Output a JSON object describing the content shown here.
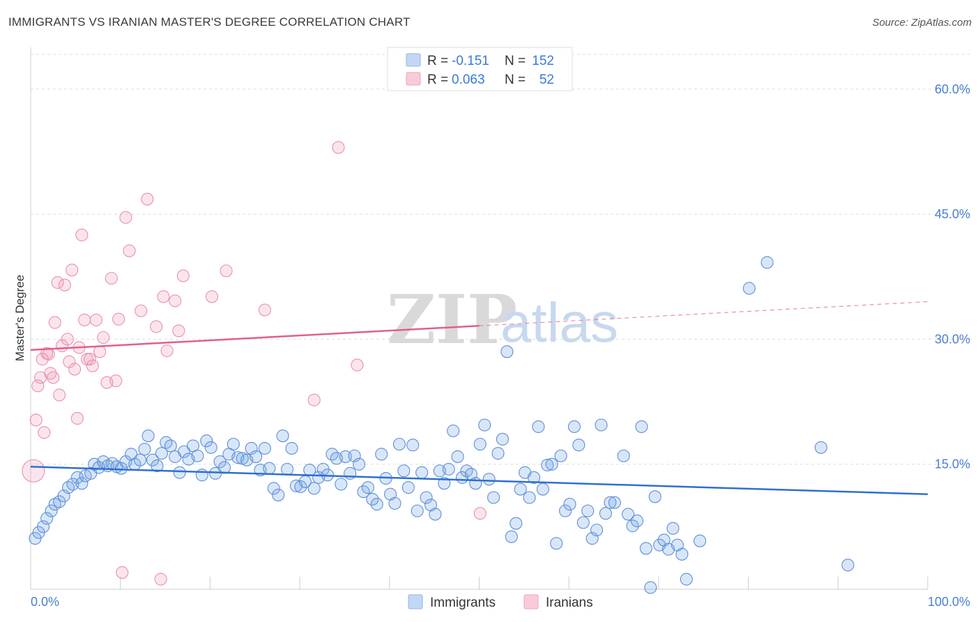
{
  "header": {
    "title": "IMMIGRANTS VS IRANIAN MASTER'S DEGREE CORRELATION CHART",
    "source": "Source: ZipAtlas.com"
  },
  "watermark": {
    "zip": "ZIP",
    "atlas": "atlas"
  },
  "legend": {
    "rows": [
      {
        "r_label": "R =",
        "r_value": "-0.151",
        "n_label": "N =",
        "n_value": "152",
        "color": "#8fb4e8"
      },
      {
        "r_label": "R =",
        "r_value": "0.063",
        "n_label": "N =",
        "n_value": "52",
        "color": "#f0a0bc"
      }
    ]
  },
  "colors": {
    "immigrants_fill": "rgba(120,165,230,0.28)",
    "immigrants_stroke": "#5b8fd9",
    "immigrants_line": "#2f6fcf",
    "iranians_fill": "rgba(240,150,180,0.25)",
    "iranians_stroke": "#ea8fae",
    "iranians_line": "#e0608a",
    "grid": "#dddddd",
    "tick_label": "#4a7fd0"
  },
  "chart_data": {
    "type": "scatter",
    "title": "IMMIGRANTS VS IRANIAN MASTER'S DEGREE CORRELATION CHART",
    "xlabel": "",
    "ylabel": "Master's Degree",
    "xlim": [
      0,
      100
    ],
    "ylim": [
      0,
      65
    ],
    "x_tick_labels": [
      "0.0%",
      "100.0%"
    ],
    "y_ticks": [
      15,
      30,
      45,
      60
    ],
    "y_tick_labels": [
      "15.0%",
      "30.0%",
      "45.0%",
      "60.0%"
    ],
    "grid": true,
    "legend_position": "top-center",
    "series": [
      {
        "name": "Immigrants",
        "r": -0.151,
        "n": 152,
        "trend": {
          "x": [
            0,
            100
          ],
          "y": [
            14.7,
            11.4
          ]
        },
        "points": [
          [
            0.5,
            6.1
          ],
          [
            0.9,
            6.8
          ],
          [
            1.4,
            7.5
          ],
          [
            1.8,
            8.5
          ],
          [
            2.3,
            9.4
          ],
          [
            2.7,
            10.2
          ],
          [
            3.2,
            10.5
          ],
          [
            3.7,
            11.2
          ],
          [
            4.2,
            12.2
          ],
          [
            4.7,
            12.6
          ],
          [
            5.2,
            13.4
          ],
          [
            5.7,
            12.7
          ],
          [
            6.1,
            13.6
          ],
          [
            6.7,
            13.9
          ],
          [
            7.1,
            15.0
          ],
          [
            7.6,
            14.6
          ],
          [
            8.1,
            15.3
          ],
          [
            8.6,
            14.8
          ],
          [
            9.1,
            15.1
          ],
          [
            9.6,
            14.7
          ],
          [
            10.1,
            14.5
          ],
          [
            10.6,
            15.3
          ],
          [
            11.2,
            16.2
          ],
          [
            11.6,
            15.0
          ],
          [
            12.2,
            15.5
          ],
          [
            12.7,
            16.8
          ],
          [
            13.1,
            18.4
          ],
          [
            13.6,
            15.5
          ],
          [
            14.1,
            14.8
          ],
          [
            14.6,
            16.3
          ],
          [
            15.1,
            17.6
          ],
          [
            15.6,
            17.2
          ],
          [
            16.1,
            15.9
          ],
          [
            16.6,
            14.0
          ],
          [
            17.1,
            16.5
          ],
          [
            17.6,
            15.6
          ],
          [
            18.1,
            17.2
          ],
          [
            18.6,
            16.0
          ],
          [
            19.1,
            13.7
          ],
          [
            19.6,
            17.8
          ],
          [
            20.1,
            17.0
          ],
          [
            20.6,
            13.9
          ],
          [
            21.1,
            15.3
          ],
          [
            21.6,
            14.6
          ],
          [
            22.1,
            16.2
          ],
          [
            22.6,
            17.4
          ],
          [
            23.1,
            15.8
          ],
          [
            23.6,
            15.7
          ],
          [
            24.1,
            15.5
          ],
          [
            24.6,
            16.9
          ],
          [
            25.1,
            15.9
          ],
          [
            25.6,
            14.3
          ],
          [
            26.1,
            16.9
          ],
          [
            26.6,
            14.5
          ],
          [
            27.1,
            12.1
          ],
          [
            27.6,
            11.3
          ],
          [
            28.1,
            18.4
          ],
          [
            28.6,
            14.4
          ],
          [
            29.1,
            16.9
          ],
          [
            29.6,
            12.4
          ],
          [
            30.1,
            12.3
          ],
          [
            30.6,
            12.9
          ],
          [
            31.1,
            14.3
          ],
          [
            31.6,
            12.1
          ],
          [
            32.1,
            13.4
          ],
          [
            32.6,
            14.4
          ],
          [
            33.1,
            13.7
          ],
          [
            33.6,
            16.2
          ],
          [
            34.1,
            15.7
          ],
          [
            34.6,
            12.6
          ],
          [
            35.1,
            15.9
          ],
          [
            35.6,
            13.9
          ],
          [
            36.1,
            16.0
          ],
          [
            36.6,
            15.0
          ],
          [
            37.1,
            11.7
          ],
          [
            37.6,
            12.2
          ],
          [
            38.1,
            10.8
          ],
          [
            38.6,
            10.2
          ],
          [
            39.1,
            16.2
          ],
          [
            39.6,
            13.3
          ],
          [
            40.1,
            11.4
          ],
          [
            40.6,
            10.3
          ],
          [
            41.1,
            17.4
          ],
          [
            41.6,
            14.2
          ],
          [
            42.1,
            12.2
          ],
          [
            42.6,
            17.3
          ],
          [
            43.1,
            9.4
          ],
          [
            43.6,
            14.0
          ],
          [
            44.1,
            11.0
          ],
          [
            44.6,
            10.1
          ],
          [
            45.1,
            9.0
          ],
          [
            45.6,
            14.2
          ],
          [
            46.1,
            12.7
          ],
          [
            46.6,
            14.4
          ],
          [
            47.1,
            19.0
          ],
          [
            47.6,
            15.9
          ],
          [
            48.1,
            13.4
          ],
          [
            48.6,
            14.2
          ],
          [
            49.1,
            13.8
          ],
          [
            49.6,
            12.7
          ],
          [
            50.1,
            17.4
          ],
          [
            50.6,
            19.7
          ],
          [
            51.1,
            13.2
          ],
          [
            51.6,
            11.0
          ],
          [
            52.1,
            16.3
          ],
          [
            52.6,
            18.0
          ],
          [
            53.1,
            28.5
          ],
          [
            53.6,
            6.3
          ],
          [
            54.1,
            7.9
          ],
          [
            54.6,
            12.0
          ],
          [
            55.1,
            14.0
          ],
          [
            55.6,
            11.0
          ],
          [
            56.1,
            13.4
          ],
          [
            56.6,
            19.5
          ],
          [
            57.1,
            12.0
          ],
          [
            57.6,
            14.9
          ],
          [
            58.1,
            15.0
          ],
          [
            58.6,
            5.5
          ],
          [
            59.1,
            16.0
          ],
          [
            59.6,
            9.4
          ],
          [
            60.1,
            10.2
          ],
          [
            60.6,
            19.5
          ],
          [
            61.1,
            17.3
          ],
          [
            61.6,
            8.0
          ],
          [
            62.1,
            9.4
          ],
          [
            62.6,
            6.1
          ],
          [
            63.1,
            7.1
          ],
          [
            63.6,
            19.7
          ],
          [
            64.1,
            9.1
          ],
          [
            64.6,
            10.4
          ],
          [
            65.1,
            10.4
          ],
          [
            66.1,
            16.0
          ],
          [
            66.6,
            9.0
          ],
          [
            67.1,
            7.6
          ],
          [
            67.6,
            8.2
          ],
          [
            68.1,
            19.5
          ],
          [
            68.6,
            4.9
          ],
          [
            69.1,
            0.2
          ],
          [
            69.6,
            11.1
          ],
          [
            70.1,
            5.3
          ],
          [
            70.6,
            5.9
          ],
          [
            71.1,
            4.8
          ],
          [
            71.6,
            7.3
          ],
          [
            72.1,
            5.3
          ],
          [
            72.6,
            4.2
          ],
          [
            73.1,
            1.2
          ],
          [
            74.6,
            5.8
          ],
          [
            80.1,
            36.1
          ],
          [
            82.1,
            39.2
          ],
          [
            88.1,
            17.0
          ],
          [
            91.1,
            2.9
          ]
        ]
      },
      {
        "name": "Iranians",
        "r": 0.063,
        "n": 52,
        "trend": {
          "x": [
            0,
            50
          ],
          "y": [
            28.7,
            31.6
          ],
          "dashed_x": [
            50,
            100
          ],
          "dashed_y": [
            31.6,
            34.5
          ]
        },
        "points": [
          [
            0.3,
            14.2
          ],
          [
            0.6,
            20.3
          ],
          [
            0.8,
            24.4
          ],
          [
            1.1,
            25.4
          ],
          [
            1.3,
            27.6
          ],
          [
            1.5,
            18.8
          ],
          [
            1.8,
            28.3
          ],
          [
            2.0,
            28.2
          ],
          [
            2.2,
            25.9
          ],
          [
            2.5,
            25.4
          ],
          [
            2.7,
            32.0
          ],
          [
            3.0,
            36.8
          ],
          [
            3.2,
            23.3
          ],
          [
            3.5,
            29.2
          ],
          [
            3.8,
            36.5
          ],
          [
            4.1,
            30.0
          ],
          [
            4.3,
            27.3
          ],
          [
            4.6,
            38.3
          ],
          [
            4.9,
            26.4
          ],
          [
            5.2,
            20.5
          ],
          [
            5.4,
            29.0
          ],
          [
            5.7,
            42.5
          ],
          [
            6.0,
            32.3
          ],
          [
            6.3,
            27.6
          ],
          [
            6.6,
            27.6
          ],
          [
            6.9,
            26.8
          ],
          [
            7.3,
            32.3
          ],
          [
            7.7,
            28.5
          ],
          [
            8.1,
            30.2
          ],
          [
            8.5,
            24.8
          ],
          [
            9.0,
            37.3
          ],
          [
            9.5,
            25.0
          ],
          [
            9.8,
            32.4
          ],
          [
            10.2,
            2.0
          ],
          [
            10.6,
            44.6
          ],
          [
            11.0,
            40.6
          ],
          [
            12.3,
            33.4
          ],
          [
            13.0,
            46.8
          ],
          [
            14.0,
            31.5
          ],
          [
            14.5,
            1.2
          ],
          [
            14.8,
            35.1
          ],
          [
            15.2,
            28.6
          ],
          [
            16.1,
            34.6
          ],
          [
            16.5,
            31.0
          ],
          [
            17.0,
            37.6
          ],
          [
            20.2,
            35.1
          ],
          [
            21.8,
            38.2
          ],
          [
            26.1,
            33.5
          ],
          [
            31.6,
            22.7
          ],
          [
            34.3,
            53.0
          ],
          [
            36.4,
            26.9
          ],
          [
            50.1,
            9.1
          ]
        ]
      }
    ]
  },
  "bottom_legend": [
    {
      "label": "Immigrants"
    },
    {
      "label": "Iranians"
    }
  ]
}
